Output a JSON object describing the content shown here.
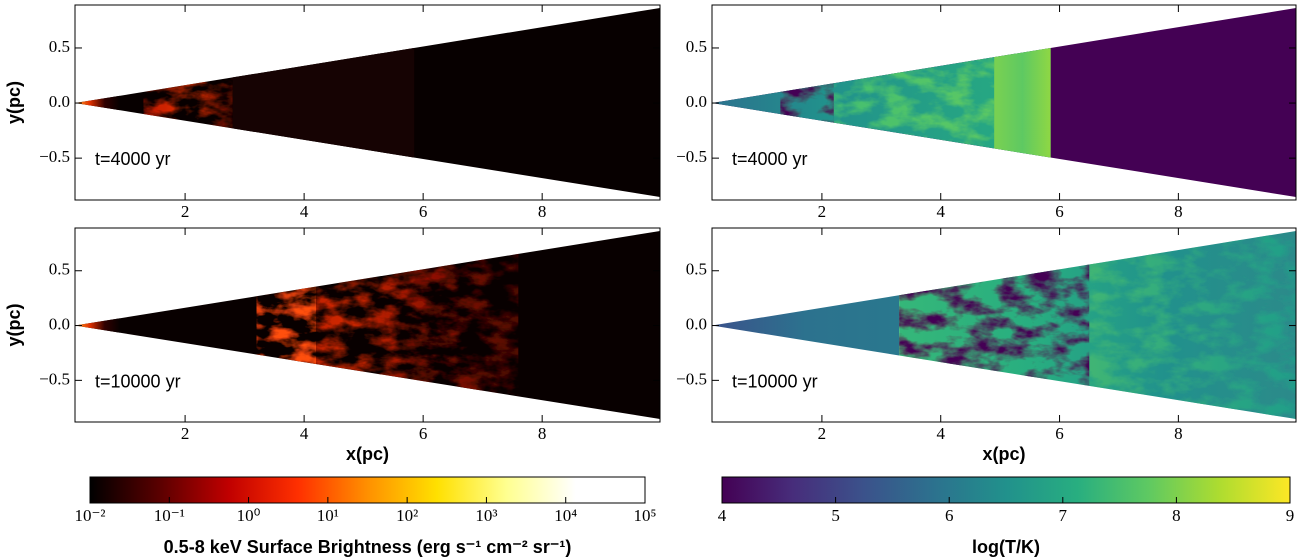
{
  "chart_data": [
    {
      "type": "image",
      "annotation": "t=4000 yr",
      "ylabel": "y(pc)",
      "xlim": [
        0.15,
        9.98
      ],
      "ylim": [
        -0.88,
        0.89
      ],
      "xticks": [
        2,
        4,
        6,
        8
      ],
      "yticks": [
        {
          "value": -0.5,
          "label": "−0.5"
        },
        {
          "value": 0,
          "label": "0.0"
        },
        0.5
      ]
    },
    {
      "type": "image",
      "annotation": "t=4000 yr",
      "xlim": [
        0.15,
        9.98
      ],
      "ylim": [
        -0.88,
        0.89
      ],
      "xticks": [
        2,
        4,
        6,
        8
      ],
      "yticks": [
        {
          "value": -0.5,
          "label": "−0.5"
        },
        {
          "value": 0,
          "label": "0.0"
        },
        0.5
      ]
    },
    {
      "type": "image",
      "annotation": "t=10000 yr",
      "ylabel": "y(pc)",
      "xlabel": "x(pc)",
      "xlim": [
        0.15,
        9.98
      ],
      "ylim": [
        -0.88,
        0.89
      ],
      "xticks": [
        2,
        4,
        6,
        8
      ],
      "yticks": [
        {
          "value": -0.5,
          "label": "−0.5"
        },
        {
          "value": 0,
          "label": "0.0"
        },
        0.5
      ]
    },
    {
      "type": "image",
      "annotation": "t=10000 yr",
      "xlabel": "x(pc)",
      "xlim": [
        0.15,
        9.98
      ],
      "ylim": [
        -0.88,
        0.89
      ],
      "xticks": [
        2,
        4,
        6,
        8
      ],
      "yticks": [
        {
          "value": -0.5,
          "label": "−0.5"
        },
        {
          "value": 0,
          "label": "0.0"
        },
        0.5
      ]
    },
    {
      "type": "colorbar",
      "label": "0.5-8 keV Surface Brightness (erg s⁻¹ cm⁻² sr⁻¹)",
      "log": true,
      "xlim": [
        0.01,
        100000
      ],
      "xticks": [
        {
          "value": 0.01,
          "label": "10⁻²"
        },
        {
          "value": 0.1,
          "label": "10⁻¹"
        },
        {
          "value": 1,
          "label": "10⁰"
        },
        {
          "value": 10,
          "label": "10¹"
        },
        {
          "value": 100,
          "label": "10²"
        },
        {
          "value": 1000,
          "label": "10³"
        },
        {
          "value": 10000,
          "label": "10⁴"
        },
        {
          "value": 100000,
          "label": "10⁵"
        }
      ],
      "colors": [
        "#000000",
        "#5a0000",
        "#c00000",
        "#ff3000",
        "#ff9000",
        "#ffe000",
        "#ffff90",
        "#ffffff",
        "#ffffff"
      ]
    },
    {
      "type": "colorbar",
      "label": "log(T/K)",
      "log": false,
      "xlim": [
        4,
        9
      ],
      "xticks": [
        4,
        5,
        6,
        7,
        8,
        9
      ],
      "colors": [
        "#440154",
        "#472d7b",
        "#3b528b",
        "#2c728e",
        "#21918c",
        "#28ae80",
        "#5ec962",
        "#addc30",
        "#fde725"
      ]
    }
  ]
}
